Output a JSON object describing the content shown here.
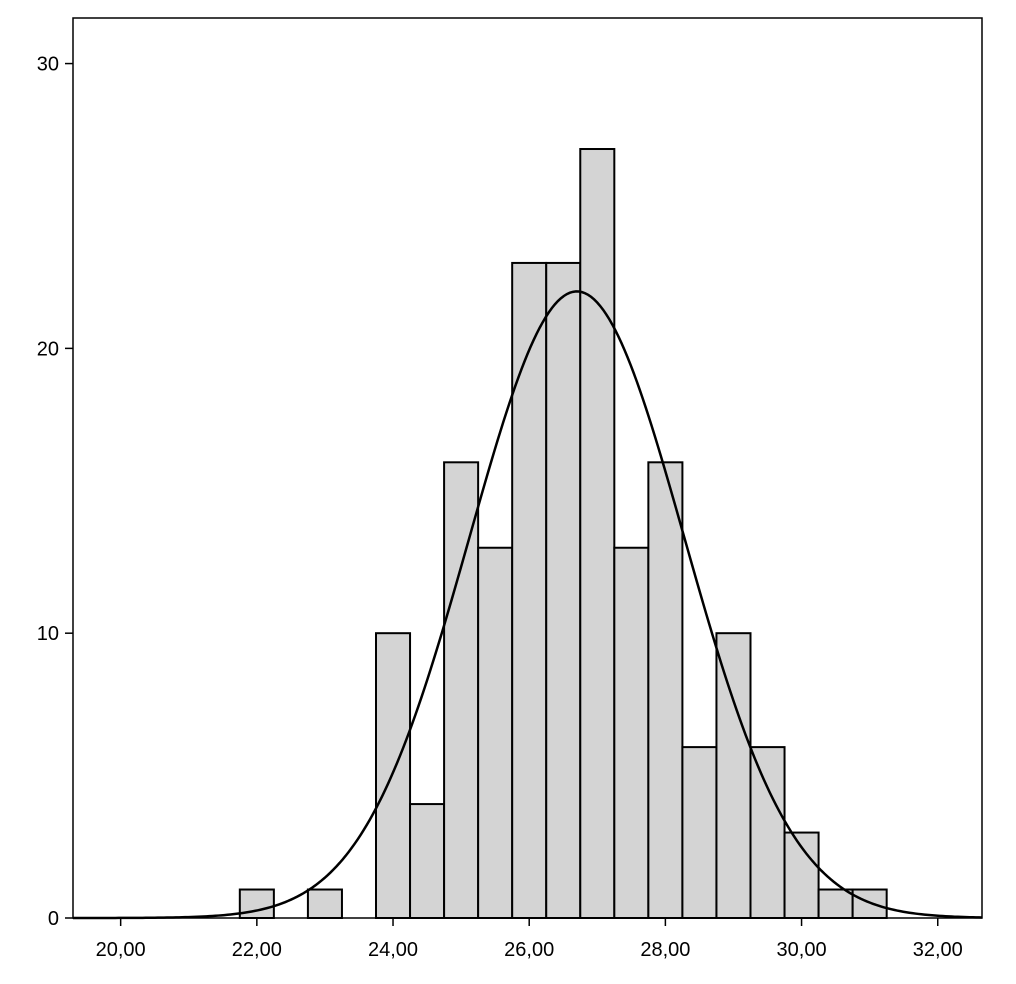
{
  "chart_data": {
    "type": "bar",
    "bin_width": 0.5,
    "bins": [
      {
        "x0": 21.75,
        "x1": 22.25,
        "value": 1
      },
      {
        "x0": 22.75,
        "x1": 23.25,
        "value": 1
      },
      {
        "x0": 23.75,
        "x1": 24.25,
        "value": 10
      },
      {
        "x0": 24.25,
        "x1": 24.75,
        "value": 4
      },
      {
        "x0": 24.75,
        "x1": 25.25,
        "value": 16
      },
      {
        "x0": 25.25,
        "x1": 25.75,
        "value": 13
      },
      {
        "x0": 25.75,
        "x1": 26.25,
        "value": 23
      },
      {
        "x0": 26.25,
        "x1": 26.75,
        "value": 23
      },
      {
        "x0": 26.75,
        "x1": 27.25,
        "value": 27
      },
      {
        "x0": 27.25,
        "x1": 27.75,
        "value": 13
      },
      {
        "x0": 27.75,
        "x1": 28.25,
        "value": 16
      },
      {
        "x0": 28.25,
        "x1": 28.75,
        "value": 6
      },
      {
        "x0": 28.75,
        "x1": 29.25,
        "value": 10
      },
      {
        "x0": 29.25,
        "x1": 29.75,
        "value": 6
      },
      {
        "x0": 29.75,
        "x1": 30.25,
        "value": 3
      },
      {
        "x0": 30.25,
        "x1": 30.75,
        "value": 1
      },
      {
        "x0": 30.75,
        "x1": 31.25,
        "value": 1
      }
    ],
    "normal_curve": {
      "mean": 26.7,
      "sd": 1.58,
      "peak": 22
    },
    "xlim": [
      19.3,
      32.65
    ],
    "ylim": [
      0,
      31.6
    ],
    "x_ticks": [
      20,
      22,
      24,
      26,
      28,
      30,
      32
    ],
    "x_tick_labels": [
      "20,00",
      "22,00",
      "24,00",
      "26,00",
      "28,00",
      "30,00",
      "32,00"
    ],
    "y_ticks": [
      0,
      10,
      20,
      30
    ],
    "y_tick_labels": [
      "0",
      "10",
      "20",
      "30"
    ],
    "title": "",
    "xlabel": "",
    "ylabel": "",
    "grid": false,
    "colors": {
      "bar_fill": "#d4d4d4",
      "bar_stroke": "#000000",
      "curve": "#000000",
      "background": "#ffffff"
    }
  }
}
